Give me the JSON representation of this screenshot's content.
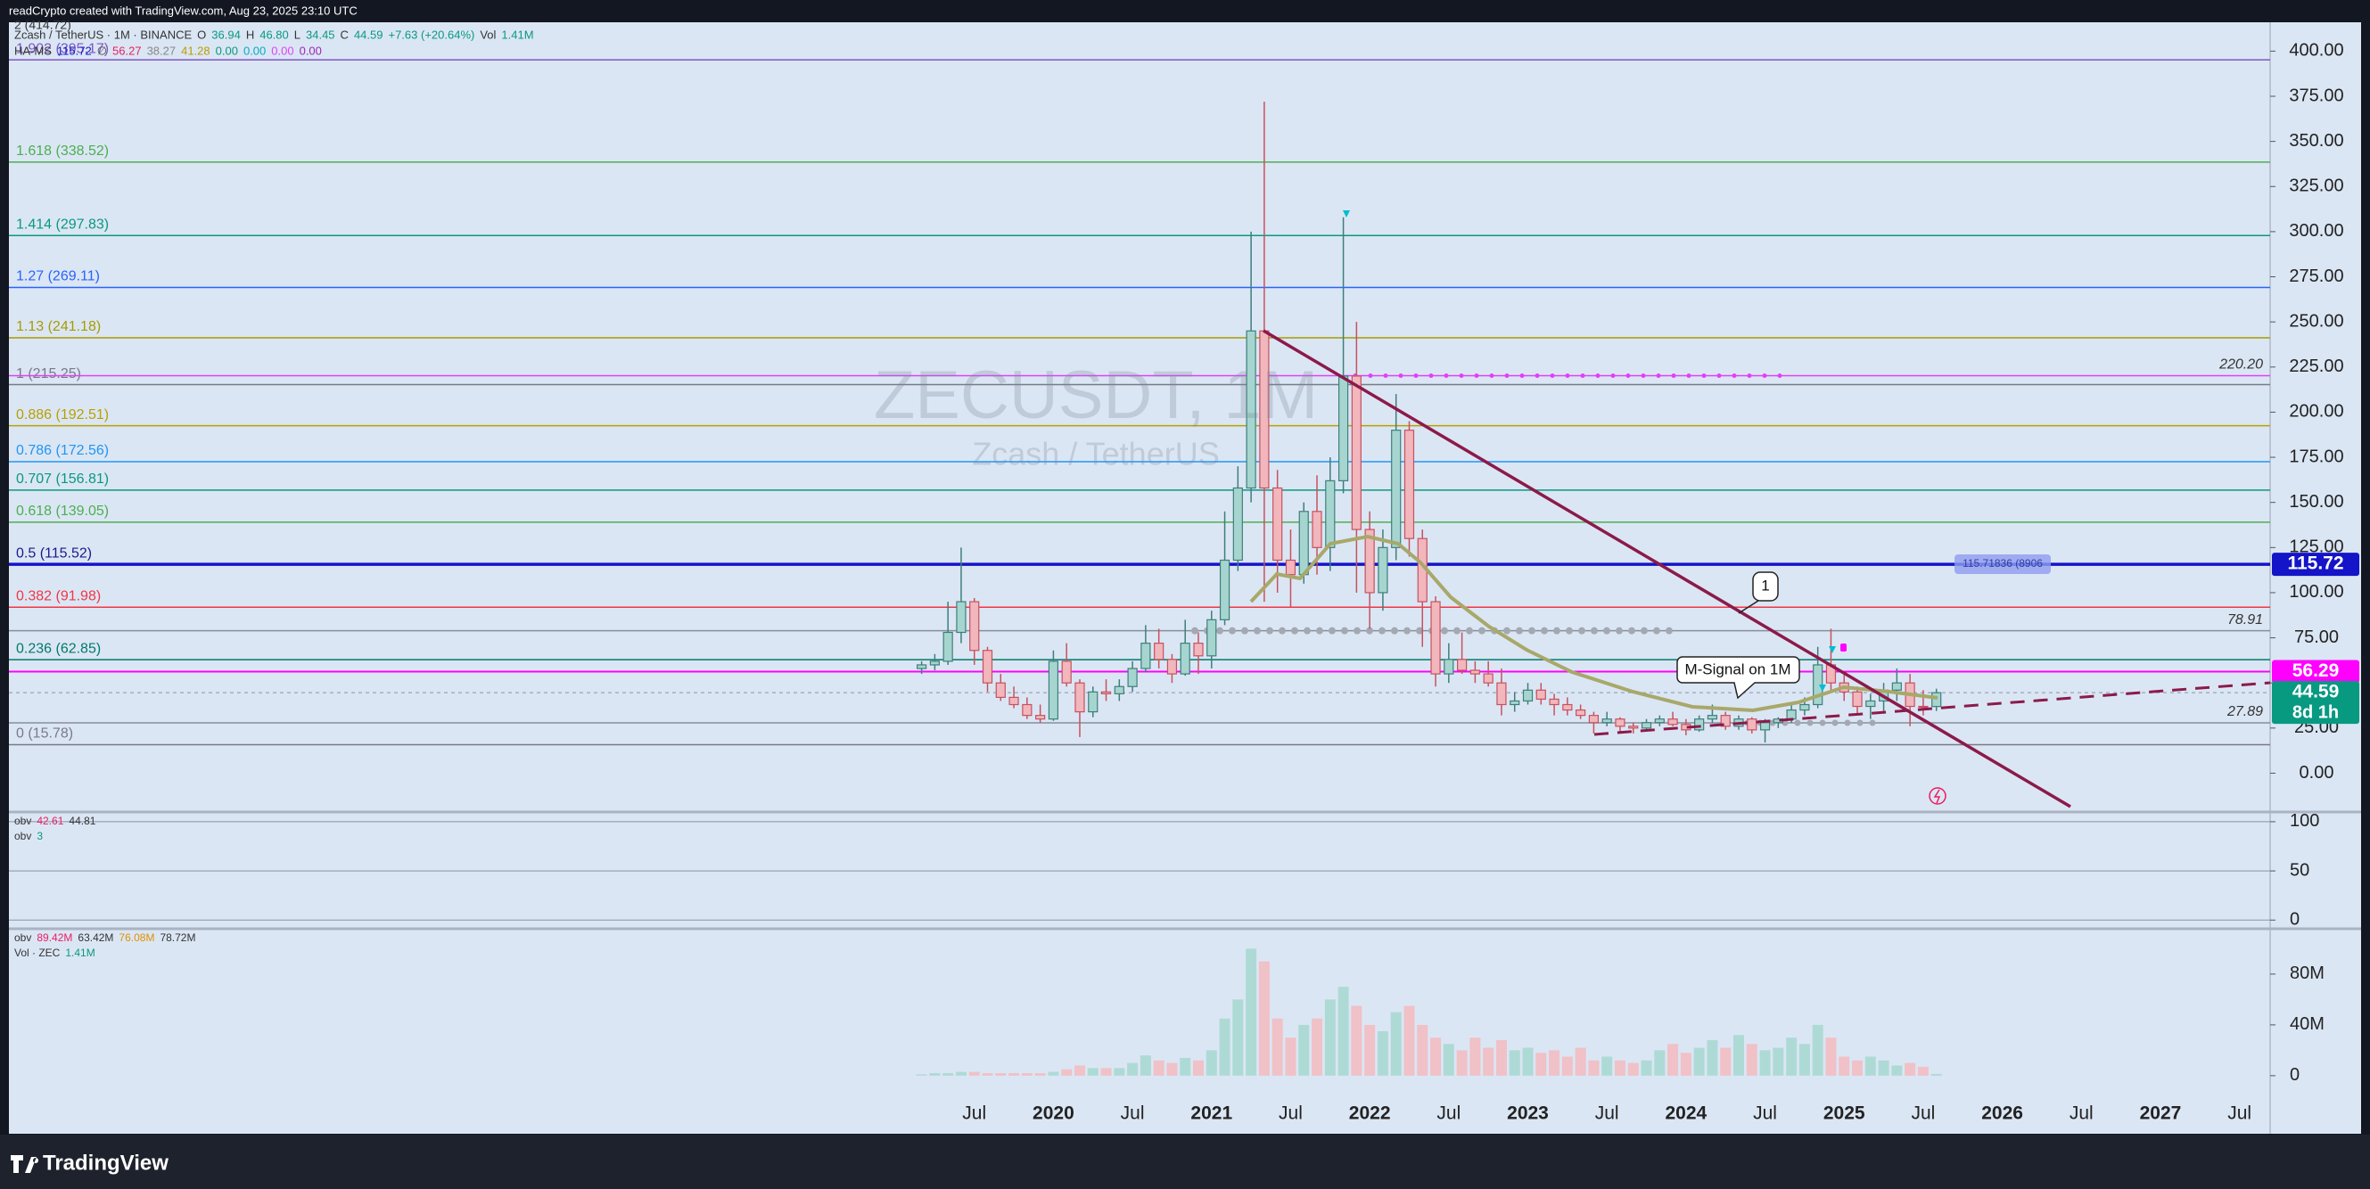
{
  "header": {
    "credit": "readCrypto created with TradingView.com, Aug 23, 2025 23:10 UTC",
    "top_level": "2 (414.72)",
    "legend": [
      "Zcash / TetherUS · 1M · BINANCE",
      "O",
      "36.94",
      "H",
      "46.80",
      "L",
      "34.45",
      "C",
      "44.59",
      "+7.63 (+20.64%)",
      "Vol",
      "1.41M"
    ],
    "hams": [
      "HA-MS",
      "115.72",
      "∅",
      "56.27",
      "38.27",
      "41.28",
      "0.00",
      "0.00",
      "0.00",
      "0.00"
    ]
  },
  "chart_data": {
    "type": "candlestick",
    "watermark": "ZECUSDT, 1M",
    "watermark_sub": "Zcash / TetherUS",
    "ylim": [
      -21,
      415
    ],
    "yticks": [
      {
        "value": 0,
        "label": "0.00"
      },
      {
        "value": 25,
        "label": "25.00"
      },
      {
        "value": 50,
        "label": "50.00"
      },
      {
        "value": 75,
        "label": "75.00"
      },
      {
        "value": 100,
        "label": "100.00"
      },
      {
        "value": 125,
        "label": "125.00"
      },
      {
        "value": 150,
        "label": "150.00"
      },
      {
        "value": 175,
        "label": "175.00"
      },
      {
        "value": 200,
        "label": "200.00"
      },
      {
        "value": 225,
        "label": "225.00"
      },
      {
        "value": 250,
        "label": "250.00"
      },
      {
        "value": 275,
        "label": "275.00"
      },
      {
        "value": 300,
        "label": "300.00"
      },
      {
        "value": 325,
        "label": "325.00"
      },
      {
        "value": 350,
        "label": "350.00"
      },
      {
        "value": 375,
        "label": "375.00"
      },
      {
        "value": 400,
        "label": "400.00"
      }
    ],
    "time_labels": [
      "Jul",
      "2020",
      "Jul",
      "2021",
      "Jul",
      "2022",
      "Jul",
      "2023",
      "Jul",
      "2024",
      "Jul",
      "2025",
      "Jul",
      "2026",
      "Jul",
      "2027",
      "Jul"
    ],
    "levels": [
      {
        "label": "1.902 (395.17)",
        "value": 395.17,
        "color": "#7e57c2"
      },
      {
        "label": "1.618 (338.52)",
        "value": 338.52,
        "color": "#4caf50"
      },
      {
        "label": "1.414 (297.83)",
        "value": 297.83,
        "color": "#089981"
      },
      {
        "label": "1.27 (269.11)",
        "value": 269.11,
        "color": "#2962ff"
      },
      {
        "label": "1.13 (241.18)",
        "value": 241.18,
        "color": "#a89b00"
      },
      {
        "label": "1 (215.25)",
        "value": 215.25,
        "color": "#787b86"
      },
      {
        "label": "0.886 (192.51)",
        "value": 192.51,
        "color": "#b8a000"
      },
      {
        "label": "0.786 (172.56)",
        "value": 172.56,
        "color": "#2196f3"
      },
      {
        "label": "0.707 (156.81)",
        "value": 156.81,
        "color": "#089981"
      },
      {
        "label": "0.618 (139.05)",
        "value": 139.05,
        "color": "#4caf50"
      },
      {
        "label": "0.5 (115.52)",
        "value": 115.52,
        "color": "#1a1a8c"
      },
      {
        "label": "0.382 (91.98)",
        "value": 91.98,
        "color": "#f23645"
      },
      {
        "label": "0.236 (62.85)",
        "value": 62.85,
        "color": "#00796b"
      },
      {
        "label": "0 (15.78)",
        "value": 15.78,
        "color": "#787b86"
      }
    ],
    "price_lines": [
      {
        "label": "220.20",
        "value": 220.2,
        "color": "#e040fb"
      },
      {
        "label": "78.91",
        "value": 78.91,
        "color": "#888f9c"
      },
      {
        "label": "27.89",
        "value": 27.89,
        "color": "#888f9c"
      }
    ],
    "price_badges": [
      {
        "label": "115.72",
        "value": 115.72,
        "color": "#1414c8"
      },
      {
        "label": "56.29",
        "value": 56.29,
        "color": "#ff00ff"
      },
      {
        "label": "44.59",
        "value": 44.59,
        "color": "#089981"
      }
    ],
    "countdown": "8d 1h",
    "annotations": [
      "M-Signal on 1M",
      "1",
      "115.71836 (8906"
    ],
    "ohlc": [
      [
        58,
        62,
        55,
        60
      ],
      [
        60,
        66,
        57,
        62
      ],
      [
        62,
        95,
        60,
        78
      ],
      [
        78,
        125,
        72,
        95
      ],
      [
        95,
        97,
        60,
        68
      ],
      [
        68,
        70,
        45,
        50
      ],
      [
        50,
        55,
        40,
        42
      ],
      [
        42,
        48,
        36,
        38
      ],
      [
        38,
        42,
        30,
        32
      ],
      [
        32,
        38,
        28,
        30
      ],
      [
        30,
        68,
        29,
        62
      ],
      [
        62,
        72,
        48,
        50
      ],
      [
        50,
        52,
        20,
        34
      ],
      [
        34,
        48,
        31,
        45
      ],
      [
        45,
        52,
        40,
        44
      ],
      [
        44,
        52,
        40,
        48
      ],
      [
        48,
        62,
        45,
        58
      ],
      [
        58,
        82,
        56,
        72
      ],
      [
        72,
        80,
        58,
        63
      ],
      [
        63,
        66,
        50,
        55
      ],
      [
        55,
        85,
        54,
        72
      ],
      [
        72,
        78,
        55,
        65
      ],
      [
        65,
        90,
        58,
        85
      ],
      [
        85,
        145,
        82,
        118
      ],
      [
        118,
        170,
        112,
        158
      ],
      [
        158,
        300,
        150,
        245
      ],
      [
        245,
        372,
        95,
        158
      ],
      [
        158,
        168,
        100,
        118
      ],
      [
        118,
        135,
        92,
        110
      ],
      [
        110,
        150,
        105,
        145
      ],
      [
        145,
        165,
        110,
        125
      ],
      [
        125,
        175,
        112,
        162
      ],
      [
        162,
        308,
        155,
        220
      ],
      [
        220,
        250,
        100,
        135
      ],
      [
        135,
        145,
        80,
        100
      ],
      [
        100,
        135,
        90,
        125
      ],
      [
        125,
        210,
        118,
        190
      ],
      [
        190,
        195,
        120,
        130
      ],
      [
        130,
        135,
        70,
        95
      ],
      [
        95,
        98,
        48,
        55
      ],
      [
        55,
        72,
        50,
        63
      ],
      [
        63,
        78,
        55,
        57
      ],
      [
        57,
        62,
        50,
        55
      ],
      [
        55,
        62,
        48,
        50
      ],
      [
        50,
        58,
        32,
        38
      ],
      [
        38,
        45,
        34,
        40
      ],
      [
        40,
        50,
        38,
        46
      ],
      [
        46,
        50,
        38,
        41
      ],
      [
        41,
        44,
        32,
        38
      ],
      [
        38,
        42,
        32,
        35
      ],
      [
        35,
        38,
        30,
        32
      ],
      [
        32,
        34,
        22,
        28
      ],
      [
        28,
        34,
        26,
        30
      ],
      [
        30,
        31,
        23,
        26
      ],
      [
        26,
        28,
        22,
        25
      ],
      [
        25,
        30,
        23,
        28
      ],
      [
        28,
        32,
        26,
        30
      ],
      [
        30,
        34,
        26,
        27
      ],
      [
        27,
        30,
        21,
        24
      ],
      [
        24,
        32,
        23,
        30
      ],
      [
        30,
        38,
        28,
        32
      ],
      [
        32,
        34,
        24,
        26
      ],
      [
        26,
        32,
        24,
        30
      ],
      [
        30,
        31,
        22,
        24
      ],
      [
        24,
        30,
        17,
        28
      ],
      [
        28,
        31,
        25,
        30
      ],
      [
        30,
        38,
        28,
        35
      ],
      [
        35,
        42,
        32,
        38
      ],
      [
        38,
        70,
        36,
        60
      ],
      [
        60,
        80,
        45,
        50
      ],
      [
        50,
        55,
        40,
        45
      ],
      [
        45,
        48,
        33,
        37
      ],
      [
        37,
        44,
        30,
        40
      ],
      [
        40,
        50,
        33,
        46
      ],
      [
        46,
        58,
        40,
        50
      ],
      [
        50,
        55,
        26,
        37
      ],
      [
        37,
        46,
        32,
        36.94
      ],
      [
        36.94,
        46.8,
        34.45,
        44.59
      ]
    ],
    "panes": [
      {
        "legend": [
          [
            "obv",
            "42.61",
            "44.81"
          ],
          [
            "obv",
            "3"
          ]
        ],
        "ylim": [
          -7,
          109
        ],
        "yticks": [
          0,
          50,
          100
        ]
      },
      {
        "legend": [
          [
            "obv",
            "89.42M",
            "63.42M",
            "76.08M",
            "78.72M"
          ],
          [
            "Vol · ZEC",
            "1.41M"
          ]
        ],
        "ylim": [
          -45000000,
          115000000
        ],
        "yticks": [
          {
            "value": 0,
            "label": "0"
          },
          {
            "value": 40000000,
            "label": "40M"
          },
          {
            "value": 80000000,
            "label": "80M"
          }
        ],
        "volume": [
          1000000,
          2000000,
          2000000,
          3000000,
          3000000,
          2000000,
          2000000,
          2000000,
          2000000,
          2000000,
          3000000,
          5000000,
          8000000,
          6000000,
          6000000,
          6000000,
          10000000,
          16000000,
          12000000,
          10000000,
          14000000,
          12000000,
          20000000,
          45000000,
          60000000,
          100000000,
          90000000,
          45000000,
          30000000,
          40000000,
          45000000,
          60000000,
          70000000,
          55000000,
          40000000,
          35000000,
          50000000,
          55000000,
          40000000,
          30000000,
          25000000,
          20000000,
          30000000,
          22000000,
          28000000,
          20000000,
          22000000,
          18000000,
          20000000,
          15000000,
          22000000,
          12000000,
          15000000,
          12000000,
          10000000,
          12000000,
          20000000,
          25000000,
          18000000,
          22000000,
          28000000,
          22000000,
          32000000,
          25000000,
          20000000,
          22000000,
          30000000,
          25000000,
          40000000,
          30000000,
          15000000,
          12000000,
          15000000,
          12000000,
          8000000,
          10000000,
          7000000,
          1410000
        ]
      }
    ]
  },
  "footer": {
    "brand": "TradingView"
  }
}
